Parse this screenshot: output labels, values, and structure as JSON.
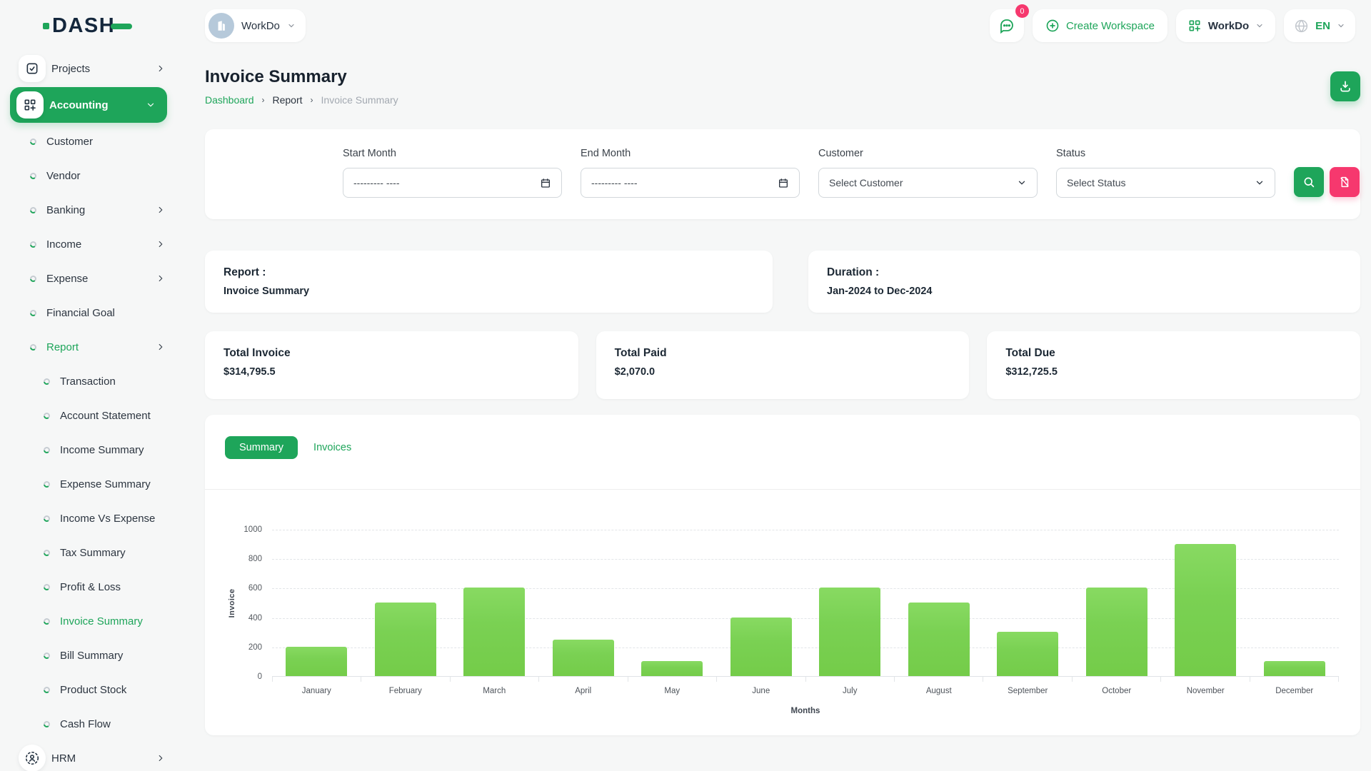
{
  "topbar": {
    "logo": "DASH",
    "workspace_chip": {
      "label": "WorkDo"
    },
    "notification_badge": "0",
    "create_workspace_label": "Create Workspace",
    "workdo_menu_label": "WorkDo",
    "language_label": "EN"
  },
  "sidebar": {
    "items": [
      {
        "label": "Projects",
        "level": 0,
        "icon": "checkbox-icon",
        "chevron": "right"
      },
      {
        "label": "Accounting",
        "level": 0,
        "icon": "modules-icon",
        "chevron": "down",
        "pill": true
      },
      {
        "label": "Customer",
        "level": 1
      },
      {
        "label": "Vendor",
        "level": 1
      },
      {
        "label": "Banking",
        "level": 1,
        "chevron": "right"
      },
      {
        "label": "Income",
        "level": 1,
        "chevron": "right"
      },
      {
        "label": "Expense",
        "level": 1,
        "chevron": "right"
      },
      {
        "label": "Financial Goal",
        "level": 1
      },
      {
        "label": "Report",
        "level": 1,
        "chevron": "right",
        "green": true
      },
      {
        "label": "Transaction",
        "level": 2
      },
      {
        "label": "Account Statement",
        "level": 2
      },
      {
        "label": "Income Summary",
        "level": 2
      },
      {
        "label": "Expense Summary",
        "level": 2
      },
      {
        "label": "Income Vs Expense",
        "level": 2
      },
      {
        "label": "Tax Summary",
        "level": 2
      },
      {
        "label": "Profit & Loss",
        "level": 2
      },
      {
        "label": "Invoice Summary",
        "level": 2,
        "green": true
      },
      {
        "label": "Bill Summary",
        "level": 2
      },
      {
        "label": "Product Stock",
        "level": 2
      },
      {
        "label": "Cash Flow",
        "level": 2
      },
      {
        "label": "HRM",
        "level": 0,
        "icon": "hrm-icon",
        "chevron": "right"
      }
    ]
  },
  "page": {
    "title": "Invoice Summary",
    "breadcrumb": [
      "Dashboard",
      "Report",
      "Invoice Summary"
    ]
  },
  "filters": {
    "start_month_label": "Start Month",
    "end_month_label": "End Month",
    "date_placeholder": "--------- ----",
    "customer_label": "Customer",
    "customer_value": "Select Customer",
    "status_label": "Status",
    "status_value": "Select Status"
  },
  "report_card": {
    "title": "Report :",
    "value": "Invoice Summary"
  },
  "duration_card": {
    "title": "Duration :",
    "value": "Jan-2024 to Dec-2024"
  },
  "stats": [
    {
      "label": "Total Invoice",
      "value": "$314,795.5"
    },
    {
      "label": "Total Paid",
      "value": "$2,070.0"
    },
    {
      "label": "Total Due",
      "value": "$312,725.5"
    }
  ],
  "tabs": [
    {
      "label": "Summary",
      "active": true
    },
    {
      "label": "Invoices",
      "active": false
    }
  ],
  "chart_data": {
    "type": "bar",
    "categories": [
      "January",
      "February",
      "March",
      "April",
      "May",
      "June",
      "July",
      "August",
      "September",
      "October",
      "November",
      "December"
    ],
    "values": [
      200,
      500,
      600,
      250,
      100,
      400,
      600,
      500,
      300,
      600,
      900,
      100
    ],
    "title": "",
    "xlabel": "Months",
    "ylabel": "Invoice",
    "ylim": [
      0,
      1000
    ],
    "yticks": [
      0,
      200,
      400,
      600,
      800,
      1000
    ],
    "grid": "dashed-horizontal",
    "legend": "none",
    "bar_color": "#7ad153"
  },
  "colors": {
    "primary_green": "#1ea55a",
    "bar_green": "#7ad153",
    "pink": "#f6386e",
    "page_bg": "#f6f7f7",
    "dark_text": "#1c2834",
    "muted_text": "#a3a9b1",
    "avatar_bg": "#b6c9da"
  }
}
